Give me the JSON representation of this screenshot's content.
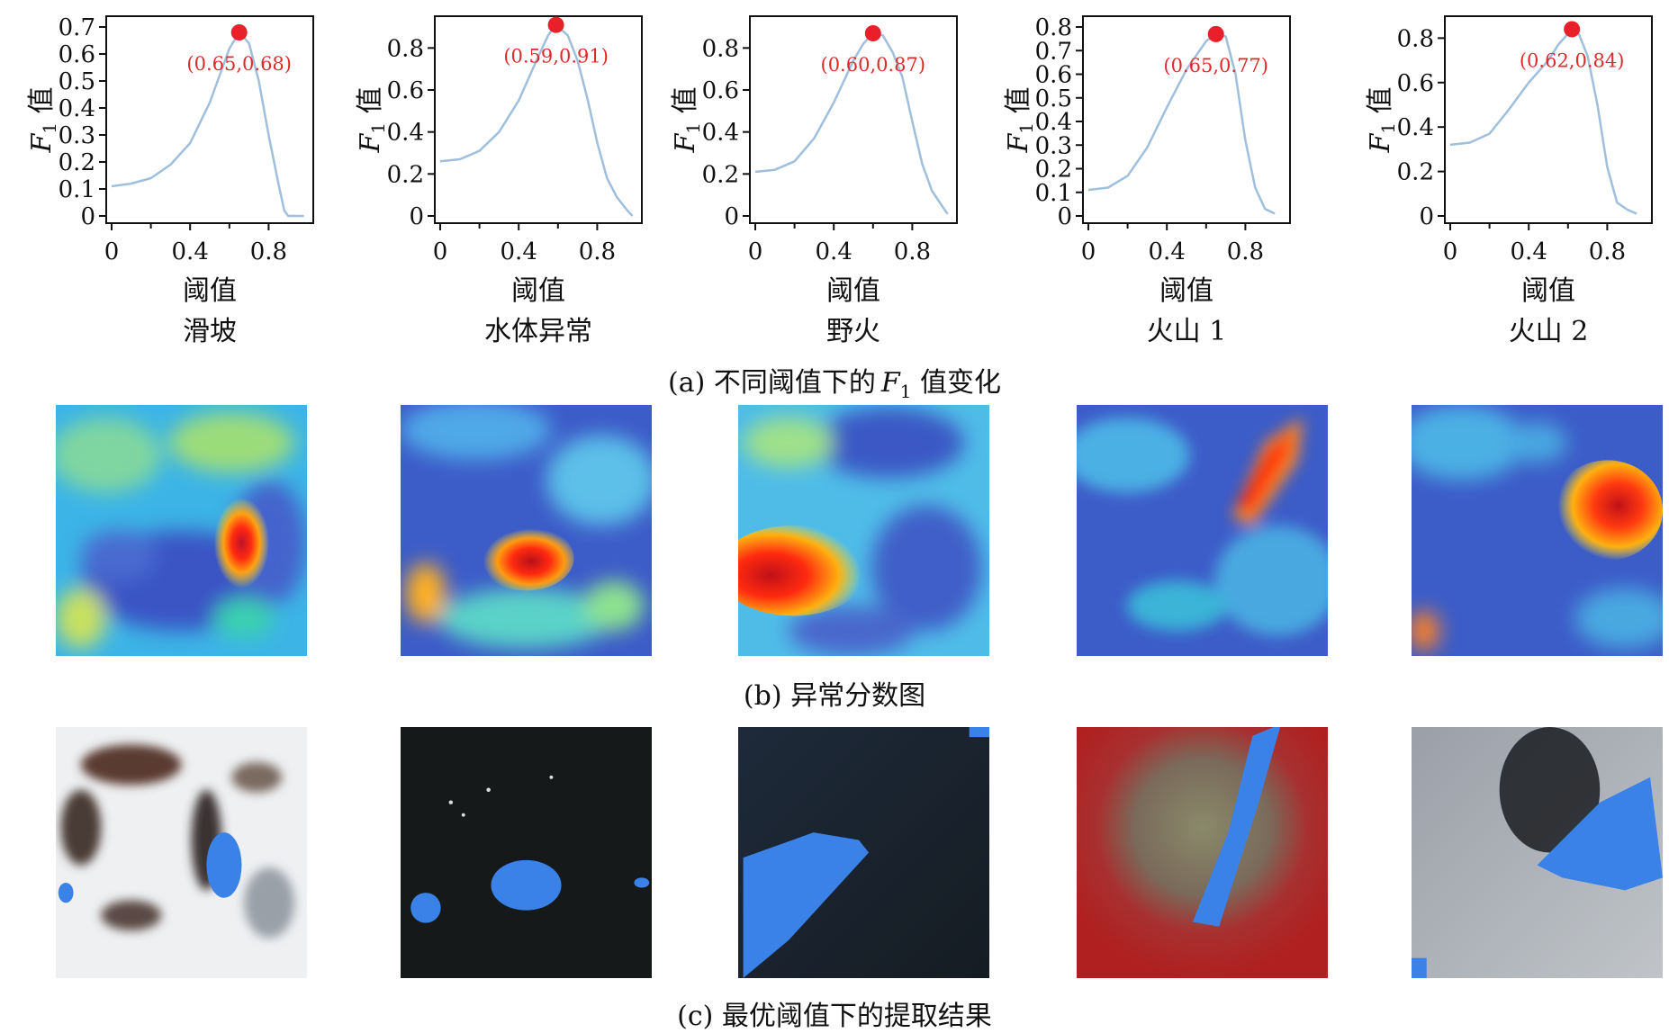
{
  "figure": {
    "chart_data": [
      {
        "type": "line",
        "title": "滑坡",
        "xlabel": "阈值",
        "ylabel": "F1 值",
        "xlim": [
          0,
          1
        ],
        "ylim": [
          0,
          0.7
        ],
        "x_ticks": [
          "0",
          "0.4",
          "0.8"
        ],
        "y_ticks": [
          "0",
          "0.1",
          "0.2",
          "0.3",
          "0.4",
          "0.5",
          "0.6",
          "0.7"
        ],
        "x": [
          0.0,
          0.1,
          0.2,
          0.3,
          0.4,
          0.5,
          0.55,
          0.6,
          0.65,
          0.7,
          0.75,
          0.8,
          0.85,
          0.88,
          0.9,
          0.95,
          0.98
        ],
        "y": [
          0.11,
          0.12,
          0.14,
          0.19,
          0.27,
          0.42,
          0.52,
          0.62,
          0.68,
          0.64,
          0.5,
          0.3,
          0.12,
          0.02,
          0.0,
          0.0,
          0.0
        ],
        "peak": {
          "x": 0.65,
          "y": 0.68,
          "label": "(0.65,0.68)"
        }
      },
      {
        "type": "line",
        "title": "水体异常",
        "xlabel": "阈值",
        "ylabel": "F1 值",
        "xlim": [
          0,
          1
        ],
        "ylim": [
          0,
          0.9
        ],
        "x_ticks": [
          "0",
          "0.4",
          "0.8"
        ],
        "y_ticks": [
          "0",
          "0.2",
          "0.4",
          "0.6",
          "0.8"
        ],
        "x": [
          0.0,
          0.1,
          0.2,
          0.3,
          0.4,
          0.5,
          0.55,
          0.59,
          0.65,
          0.7,
          0.75,
          0.8,
          0.85,
          0.9,
          0.95,
          0.98
        ],
        "y": [
          0.26,
          0.27,
          0.31,
          0.4,
          0.55,
          0.76,
          0.86,
          0.91,
          0.86,
          0.74,
          0.56,
          0.35,
          0.18,
          0.09,
          0.03,
          0.0
        ],
        "peak": {
          "x": 0.59,
          "y": 0.91,
          "label": "(0.59,0.91)"
        }
      },
      {
        "type": "line",
        "title": "野火",
        "xlabel": "阈值",
        "ylabel": "F1 值",
        "xlim": [
          0,
          1
        ],
        "ylim": [
          0,
          0.9
        ],
        "x_ticks": [
          "0",
          "0.4",
          "0.8"
        ],
        "y_ticks": [
          "0",
          "0.2",
          "0.4",
          "0.6",
          "0.8"
        ],
        "x": [
          0.0,
          0.1,
          0.2,
          0.3,
          0.4,
          0.5,
          0.55,
          0.6,
          0.65,
          0.7,
          0.75,
          0.8,
          0.85,
          0.9,
          0.95,
          0.98
        ],
        "y": [
          0.21,
          0.22,
          0.26,
          0.37,
          0.54,
          0.74,
          0.82,
          0.87,
          0.86,
          0.78,
          0.66,
          0.45,
          0.25,
          0.12,
          0.05,
          0.01
        ],
        "peak": {
          "x": 0.6,
          "y": 0.87,
          "label": "(0.60,0.87)"
        }
      },
      {
        "type": "line",
        "title": "火山 1",
        "xlabel": "阈值",
        "ylabel": "F1 值",
        "xlim": [
          0,
          1
        ],
        "ylim": [
          0,
          0.8
        ],
        "x_ticks": [
          "0",
          "0.4",
          "0.8"
        ],
        "y_ticks": [
          "0",
          "0.1",
          "0.2",
          "0.3",
          "0.4",
          "0.5",
          "0.6",
          "0.7",
          "0.8"
        ],
        "x": [
          0.0,
          0.1,
          0.2,
          0.3,
          0.4,
          0.5,
          0.6,
          0.65,
          0.7,
          0.75,
          0.8,
          0.85,
          0.9,
          0.95
        ],
        "y": [
          0.11,
          0.12,
          0.17,
          0.29,
          0.46,
          0.62,
          0.74,
          0.77,
          0.76,
          0.6,
          0.32,
          0.12,
          0.03,
          0.01
        ],
        "peak": {
          "x": 0.65,
          "y": 0.77,
          "label": "(0.65,0.77)"
        }
      },
      {
        "type": "line",
        "title": "火山 2",
        "xlabel": "阈值",
        "ylabel": "F1 值",
        "xlim": [
          0,
          1
        ],
        "ylim": [
          0,
          0.85
        ],
        "x_ticks": [
          "0",
          "0.4",
          "0.8"
        ],
        "y_ticks": [
          "0",
          "0.2",
          "0.4",
          "0.6",
          "0.8"
        ],
        "x": [
          0.0,
          0.1,
          0.2,
          0.3,
          0.4,
          0.5,
          0.55,
          0.62,
          0.65,
          0.7,
          0.75,
          0.8,
          0.85,
          0.9,
          0.95
        ],
        "y": [
          0.32,
          0.33,
          0.37,
          0.48,
          0.6,
          0.7,
          0.77,
          0.84,
          0.83,
          0.72,
          0.5,
          0.22,
          0.06,
          0.03,
          0.01
        ],
        "peak": {
          "x": 0.62,
          "y": 0.84,
          "label": "(0.62,0.84)"
        }
      }
    ],
    "captions": {
      "a_prefix": "(a) 不同阈值下的",
      "a_symbol": "F",
      "a_sub": "1",
      "a_suffix": " 值变化",
      "b": "(b) 异常分数图",
      "c": "(c) 最优阈值下的提取结果"
    },
    "colors": {
      "line": "#9fbfdc",
      "peak": "#e8202a",
      "peak_label": "#e02a2a",
      "axis": "#111111"
    }
  }
}
